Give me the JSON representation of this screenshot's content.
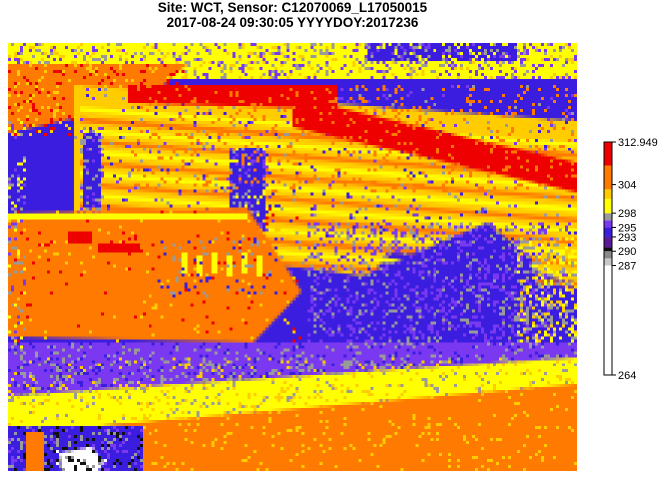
{
  "header": {
    "title_line1": "Site: WCT, Sensor: C12070069_L17050015",
    "title_line2": "2017-08-24 09:30:05 YYYYDOY:2017236"
  },
  "chart_data": {
    "type": "heatmap",
    "title": "Site: WCT, Sensor: C12070069_L17050015",
    "subtitle": "2017-08-24 09:30:05 YYYYDOY:2017236",
    "xlabel": "",
    "ylabel": "",
    "legend_position": "right",
    "value_range": [
      264,
      312.949
    ],
    "colorbar_ticks": [
      {
        "value": 312.949,
        "label": "312.949"
      },
      {
        "value": 304,
        "label": "304"
      },
      {
        "value": 298,
        "label": "298"
      },
      {
        "value": 295,
        "label": "295"
      },
      {
        "value": 293,
        "label": "293"
      },
      {
        "value": 290,
        "label": "290"
      },
      {
        "value": 287,
        "label": "287"
      },
      {
        "value": 264,
        "label": "264"
      }
    ],
    "colorbar_segments": [
      {
        "from": 264,
        "to": 287,
        "color": "#ffffff"
      },
      {
        "from": 287,
        "to": 288.5,
        "color": "#c8c8c8"
      },
      {
        "from": 288.5,
        "to": 290,
        "color": "#8a8a8a"
      },
      {
        "from": 290,
        "to": 290.8,
        "color": "#111111"
      },
      {
        "from": 290.8,
        "to": 293,
        "color": "#5a1a9a"
      },
      {
        "from": 293,
        "to": 295,
        "color": "#3b1de0"
      },
      {
        "from": 295,
        "to": 296.5,
        "color": "#7a39f0"
      },
      {
        "from": 296.5,
        "to": 298,
        "color": "#9a9a9a"
      },
      {
        "from": 298,
        "to": 301,
        "color": "#ffff00"
      },
      {
        "from": 301,
        "to": 303,
        "color": "#ffcc00"
      },
      {
        "from": 303,
        "to": 308,
        "color": "#ff7a00"
      },
      {
        "from": 308,
        "to": 312.949,
        "color": "#ee0000"
      }
    ],
    "palette": {
      "red": "#ee0000",
      "orange": "#ff7a00",
      "gold": "#ffcc00",
      "yellow": "#ffff00",
      "gray": "#9a9a9a",
      "purple": "#7a39f0",
      "blue": "#3b1de0",
      "black": "#111111",
      "white": "#ffffff"
    }
  }
}
